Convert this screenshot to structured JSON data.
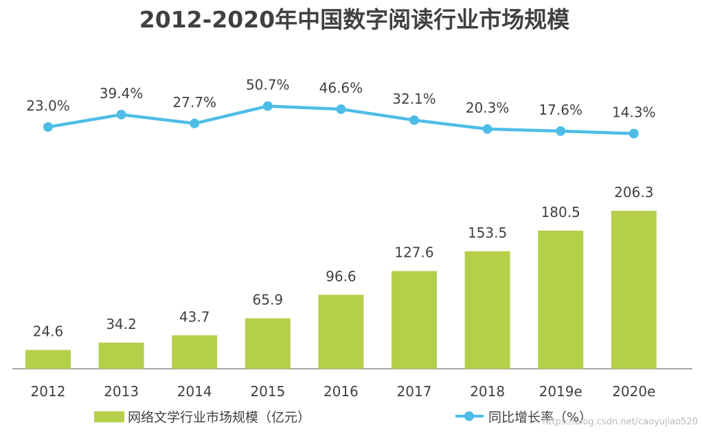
{
  "chart_data": {
    "type": "bar+line",
    "title": "2012-2020年中国数字阅读行业市场规模",
    "categories": [
      "2012",
      "2013",
      "2014",
      "2015",
      "2016",
      "2017",
      "2018",
      "2019e",
      "2020e"
    ],
    "series": [
      {
        "name": "网络文学行业市场规模（亿元）",
        "type": "bar",
        "color": "#b5cf4b",
        "values": [
          24.6,
          34.2,
          43.7,
          65.9,
          96.6,
          127.6,
          153.5,
          180.5,
          206.3
        ],
        "labels": [
          "24.6",
          "34.2",
          "43.7",
          "65.9",
          "96.6",
          "127.6",
          "153.5",
          "180.5",
          "206.3"
        ]
      },
      {
        "name": "同比增长率（%）",
        "type": "line",
        "color": "#4dbde7",
        "values": [
          23.0,
          39.4,
          27.7,
          50.7,
          46.6,
          32.1,
          20.3,
          17.6,
          14.3
        ],
        "labels": [
          "23.0%",
          "39.4%",
          "27.7%",
          "50.7%",
          "46.6%",
          "32.1%",
          "20.3%",
          "17.6%",
          "14.3%"
        ]
      }
    ],
    "legend_position": "bottom"
  },
  "watermark": "https://blog.csdn.net/caoyujiao520"
}
